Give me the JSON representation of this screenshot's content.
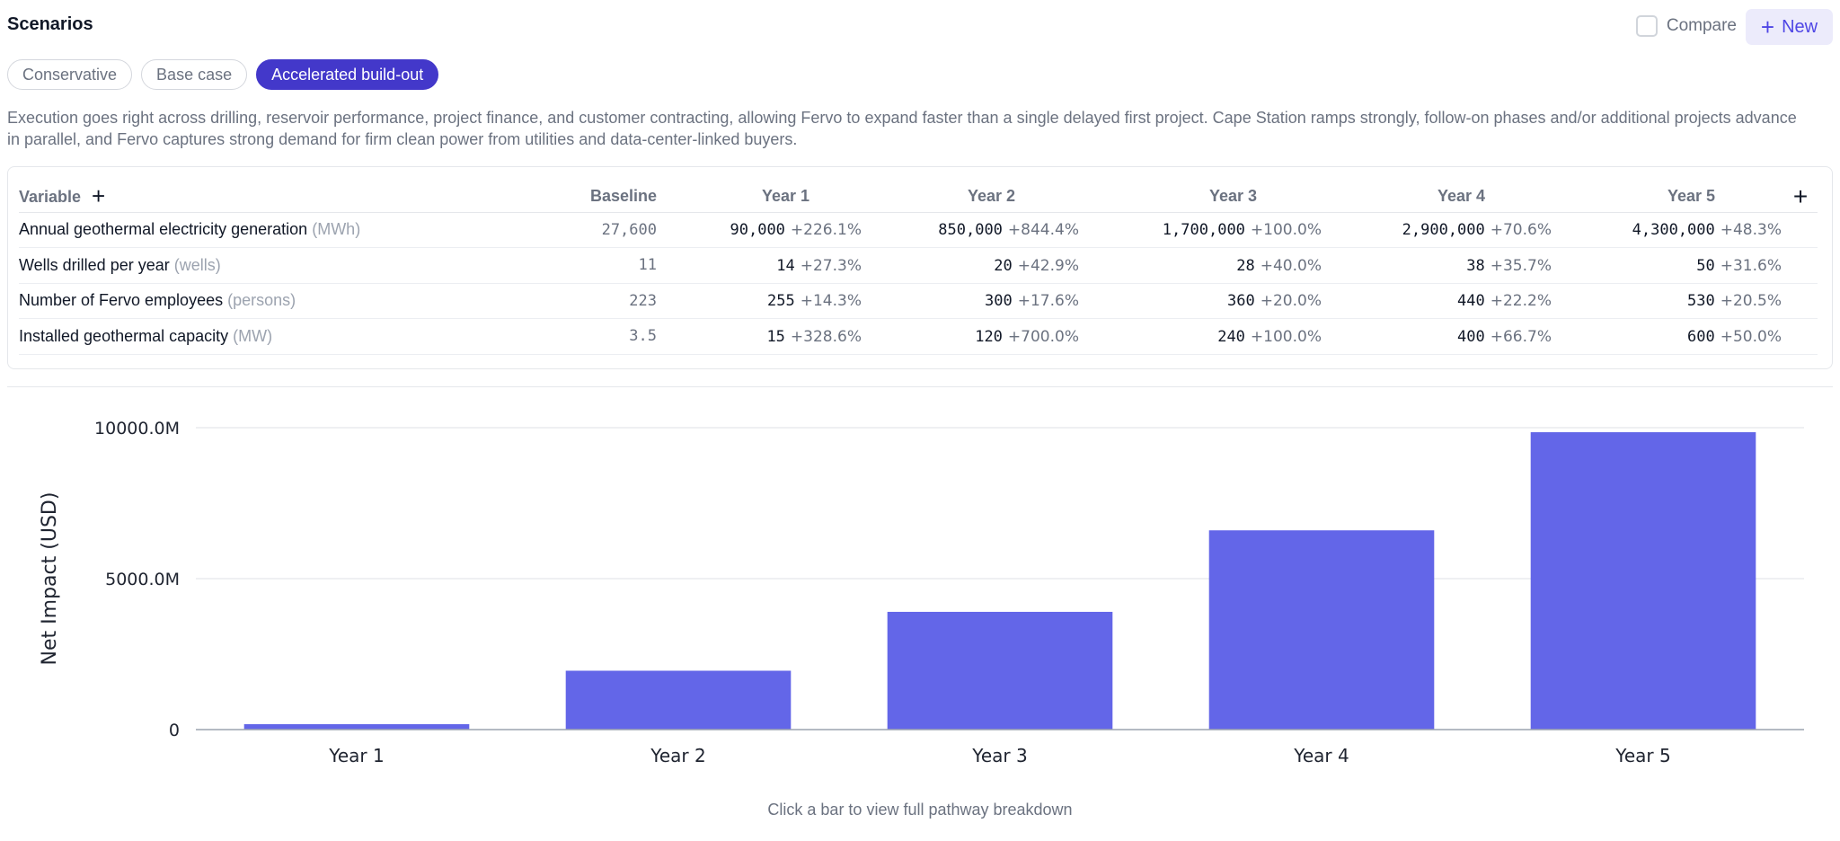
{
  "header": {
    "title": "Scenarios",
    "compare_label": "Compare",
    "new_label": "New"
  },
  "tabs": [
    {
      "label": "Conservative",
      "active": false
    },
    {
      "label": "Base case",
      "active": false
    },
    {
      "label": "Accelerated build-out",
      "active": true
    }
  ],
  "description": "Execution goes right across drilling, reservoir performance, project finance, and customer contracting, allowing Fervo to expand faster than a single delayed first project. Cape Station ramps strongly, follow-on phases and/or additional projects advance in parallel, and Fervo captures strong demand for firm clean power from utilities and data-center-linked buyers.",
  "table": {
    "headers": [
      "Variable",
      "Baseline",
      "Year 1",
      "Year 2",
      "Year 3",
      "Year 4",
      "Year 5"
    ],
    "rows": [
      {
        "name": "Annual geothermal electricity generation",
        "unit": "(MWh)",
        "baseline": "27,600",
        "years": [
          {
            "value": "90,000",
            "change": "+226.1%"
          },
          {
            "value": "850,000",
            "change": "+844.4%"
          },
          {
            "value": "1,700,000",
            "change": "+100.0%"
          },
          {
            "value": "2,900,000",
            "change": "+70.6%"
          },
          {
            "value": "4,300,000",
            "change": "+48.3%"
          }
        ]
      },
      {
        "name": "Wells drilled per year",
        "unit": "(wells)",
        "baseline": "11",
        "years": [
          {
            "value": "14",
            "change": "+27.3%"
          },
          {
            "value": "20",
            "change": "+42.9%"
          },
          {
            "value": "28",
            "change": "+40.0%"
          },
          {
            "value": "38",
            "change": "+35.7%"
          },
          {
            "value": "50",
            "change": "+31.6%"
          }
        ]
      },
      {
        "name": "Number of Fervo employees",
        "unit": "(persons)",
        "baseline": "223",
        "years": [
          {
            "value": "255",
            "change": "+14.3%"
          },
          {
            "value": "300",
            "change": "+17.6%"
          },
          {
            "value": "360",
            "change": "+20.0%"
          },
          {
            "value": "440",
            "change": "+22.2%"
          },
          {
            "value": "530",
            "change": "+20.5%"
          }
        ]
      },
      {
        "name": "Installed geothermal capacity",
        "unit": "(MW)",
        "baseline": "3.5",
        "years": [
          {
            "value": "15",
            "change": "+328.6%"
          },
          {
            "value": "120",
            "change": "+700.0%"
          },
          {
            "value": "240",
            "change": "+100.0%"
          },
          {
            "value": "400",
            "change": "+66.7%"
          },
          {
            "value": "600",
            "change": "+50.0%"
          }
        ]
      }
    ]
  },
  "chart_data": {
    "type": "bar",
    "categories": [
      "Year 1",
      "Year 2",
      "Year 3",
      "Year 4",
      "Year 5"
    ],
    "values": [
      180,
      1950,
      3900,
      6600,
      9850
    ],
    "ylabel": "Net Impact (USD)",
    "xlabel": "",
    "ylim": [
      0,
      10000
    ],
    "yticks": [
      {
        "value": 0,
        "label": "0"
      },
      {
        "value": 5000,
        "label": "5000.0M"
      },
      {
        "value": 10000,
        "label": "10000.0M"
      }
    ],
    "grid": true,
    "bar_color": "#6366e8"
  },
  "hint": "Click a bar to view full pathway breakdown"
}
